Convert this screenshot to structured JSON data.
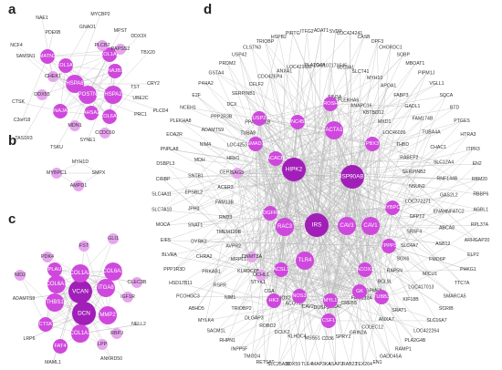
{
  "colors": {
    "node_dark": "#a11fb8",
    "node_mid": "#cf48dd",
    "node_light": "#e7a4ee",
    "edge": "#b9b9b9",
    "label_on_node": "#ffffff",
    "label": "#333333"
  },
  "panels": [
    {
      "id": "a",
      "letter": "a",
      "nodes": [
        {
          "label": "MATN2",
          "level": 2
        },
        {
          "label": "COL1A2",
          "level": 2
        },
        {
          "label": "CHEK1",
          "level": 1
        },
        {
          "label": "HSPA8",
          "level": 3
        },
        {
          "label": "DNAJB13",
          "level": 2
        },
        {
          "label": "COL1A1",
          "level": 2
        },
        {
          "label": "PAPSS2",
          "level": 1
        },
        {
          "label": "POSTN",
          "level": 3
        },
        {
          "label": "HSPA2",
          "level": 3
        },
        {
          "label": "DNAJA4",
          "level": 2
        },
        {
          "label": "AHSA2",
          "level": 2
        },
        {
          "label": "COL6A3",
          "level": 2
        },
        {
          "label": "MDN1",
          "level": 1
        },
        {
          "label": "CCDC60",
          "level": 1
        },
        {
          "label": "DDX55",
          "level": 1
        },
        {
          "label": "PLCB2",
          "level": 1
        },
        {
          "label": "GNAO1",
          "level": 0
        },
        {
          "label": "PDE6B",
          "level": 0
        },
        {
          "label": "DDX3X",
          "level": 0
        },
        {
          "label": "TBX20",
          "level": 0
        },
        {
          "label": "TST",
          "level": 0
        },
        {
          "label": "UBE2C",
          "level": 0
        },
        {
          "label": "CRY2",
          "level": 0
        },
        {
          "label": "PRC1",
          "level": 0
        },
        {
          "label": "PLCD4",
          "level": 0
        },
        {
          "label": "SYNE1",
          "level": 0
        },
        {
          "label": "TSKU",
          "level": 0
        },
        {
          "label": "TAS1R3",
          "level": 0
        },
        {
          "label": "C3orf18",
          "level": 0
        },
        {
          "label": "CTSK",
          "level": 0
        },
        {
          "label": "SAMSN1",
          "level": 0
        },
        {
          "label": "NCF4",
          "level": 0
        },
        {
          "label": "NAE1",
          "level": 0
        },
        {
          "label": "MYCBP2",
          "level": 0
        },
        {
          "label": "MPST",
          "level": 0
        }
      ]
    },
    {
      "id": "b",
      "letter": "b",
      "nodes": [
        {
          "label": "MYH1D",
          "level": 0
        },
        {
          "label": "MYBPC1",
          "level": 1
        },
        {
          "label": "SMPX",
          "level": 0
        },
        {
          "label": "AMPD1",
          "level": 1
        }
      ]
    },
    {
      "id": "c",
      "letter": "c",
      "nodes": [
        {
          "label": "COL6A3",
          "level": 3
        },
        {
          "label": "ITGA8",
          "level": 3
        },
        {
          "label": "VCAN",
          "level": 4
        },
        {
          "label": "COL1A2",
          "level": 3
        },
        {
          "label": "COL6A1",
          "level": 3
        },
        {
          "label": "PLAU",
          "level": 2
        },
        {
          "label": "DCN",
          "level": 4
        },
        {
          "label": "MMP2",
          "level": 3
        },
        {
          "label": "THBS1",
          "level": 3
        },
        {
          "label": "COL1A1",
          "level": 3
        },
        {
          "label": "CTSK",
          "level": 2
        },
        {
          "label": "FAT4",
          "level": 2
        },
        {
          "label": "LPP",
          "level": 1
        },
        {
          "label": "RBPJ",
          "level": 1
        },
        {
          "label": "IGF1R",
          "level": 1
        },
        {
          "label": "PDK4",
          "level": 1
        },
        {
          "label": "FST",
          "level": 1
        },
        {
          "label": "GLI1",
          "level": 1
        },
        {
          "label": "CLEC3B",
          "level": 1
        },
        {
          "label": "NID2",
          "level": 1
        },
        {
          "label": "ADAMTS9",
          "level": 0
        },
        {
          "label": "LRP6",
          "level": 0
        },
        {
          "label": "MAML1",
          "level": 0
        },
        {
          "label": "NELL2",
          "level": 0
        },
        {
          "label": "ANKRD50",
          "level": 0
        }
      ]
    },
    {
      "id": "d",
      "letter": "d",
      "hubs": [
        {
          "label": "HIPK2",
          "level": 4
        },
        {
          "label": "IRS",
          "level": 4
        },
        {
          "label": "HSP90AB1",
          "level": 4
        },
        {
          "label": "ACTA1",
          "level": 3
        },
        {
          "label": "CAV3",
          "level": 3
        },
        {
          "label": "CAV1",
          "level": 3
        },
        {
          "label": "TLR4",
          "level": 3
        },
        {
          "label": "RAC3",
          "level": 3
        },
        {
          "label": "ACSL1",
          "level": 2
        },
        {
          "label": "ACACB",
          "level": 2
        },
        {
          "label": "UNC45B",
          "level": 2
        },
        {
          "label": "SMAD1",
          "level": 2
        },
        {
          "label": "PDGFRA",
          "level": 2
        },
        {
          "label": "MYL1",
          "level": 2
        },
        {
          "label": "HK2",
          "level": 2
        },
        {
          "label": "ACOX2",
          "level": 2
        },
        {
          "label": "GK",
          "level": 2
        },
        {
          "label": "DROSHA",
          "level": 2
        },
        {
          "label": "NOS3",
          "level": 2
        },
        {
          "label": "CSF1",
          "level": 2
        },
        {
          "label": "PBX3",
          "level": 2
        },
        {
          "label": "TUBB3",
          "level": 2
        },
        {
          "label": "TPPP3",
          "level": 2
        },
        {
          "label": "MYBPC1",
          "level": 2
        },
        {
          "label": "USP2",
          "level": 2
        },
        {
          "label": "SAG3",
          "level": 1
        },
        {
          "label": "DNMT3A",
          "level": 1
        },
        {
          "label": "UCHL1",
          "level": 1
        }
      ],
      "nodes": [
        "ADAT1",
        "SVDP",
        "LOC424241",
        "CASB",
        "DPF3",
        "CHORDC1",
        "SOBP",
        "MBOAT1",
        "PIPM1J",
        "VGLL1",
        "SQCA",
        "BTD",
        "PTGES",
        "HTRA3",
        "ITPR3",
        "EN2",
        "RBM20",
        "RBBP6",
        "AGBL1",
        "RPL37A",
        "ARHGAP20",
        "ELP2",
        "PHKG1",
        "TTC7A",
        "SMARCA5",
        "SCRIB",
        "SLC16A7",
        "LOC422264",
        "PLA2G4B",
        "RAMP1",
        "GADD45A",
        "EN1",
        "TEX264",
        "RAB23",
        "ASAP2",
        "MAP3K4",
        "TLE4",
        "DDX59",
        "SLC25A30",
        "RETSAT",
        "TMOD4",
        "INPP5F",
        "RHPN1",
        "SACM1L",
        "MYLK4",
        "ABHD5",
        "PCOHGC3",
        "HSD17B11",
        "PPP1R3D",
        "BLVRA",
        "EIF5",
        "MOCA",
        "SLC7A10",
        "SLC4A11",
        "CIRBP",
        "DSBPL3",
        "PNPLA8",
        "EOA2R",
        "PLEKHA8",
        "NCEH1",
        "E2F",
        "P4HA2",
        "GSTA4",
        "PRDM2",
        "USP42",
        "CLSTN3",
        "TRIOBP",
        "HSPB2",
        "PIRTG",
        "ITFG2",
        "LOC107171545",
        "SLC3A1",
        "SLCT41",
        "MYH10",
        "APOA1",
        "FABP3",
        "GADL1",
        "FAM174B",
        "TUBA4A",
        "CHAC1",
        "SLC12A4",
        "RNF144B",
        "GAS2L2",
        "ENAHNFATC2",
        "ABCA8",
        "ASB12",
        "FMO6P",
        "MICU1",
        "LOC417013",
        "KIF18B",
        "SRAT1",
        "ANXA7",
        "COLEC12",
        "GRIN2A",
        "SPRY2",
        "CD36",
        "MSS51",
        "KLHDC4",
        "DCLK2",
        "ROBO2",
        "DLGAP3",
        "TRIOBP2",
        "NIM1",
        "RSFR",
        "PRKAB1",
        "CHRA2",
        "DYRK2",
        "SNAT1",
        "JPH3",
        "EPSBL2",
        "SNTB1",
        "MDH",
        "NIM4",
        "ADAMTS9",
        "PPP2R3B",
        "DCX",
        "SERPINB1",
        "CELF2",
        "CDO42EP4",
        "ANXA1",
        "LOC421682",
        "PLA2G4A",
        "SIN3A",
        "PLEKHA6",
        "ANAPC16",
        "KBTBD12",
        "MXD1",
        "LOC46036",
        "THBD",
        "RABEF2",
        "SERPINB2",
        "NSUN2",
        "LOC772271",
        "GFPT2",
        "SRSF4",
        "SLC4A7",
        "SOX6",
        "RAP5N",
        "BCL9L",
        "GPM6A",
        "FAM132A",
        "CREB5",
        "MCAT",
        "DUSP3",
        "CAV2",
        "ACOT11",
        "PKNOX2",
        "CGA",
        "STYK1",
        "KLHDC8B",
        "MRPL18",
        "AVPR2",
        "TMEM120B",
        "RND3",
        "FAM13B",
        "ACER3",
        "CEP192",
        "HRH1",
        "LOC425372",
        "TUBA8",
        "PPARGC1B"
      ]
    }
  ]
}
